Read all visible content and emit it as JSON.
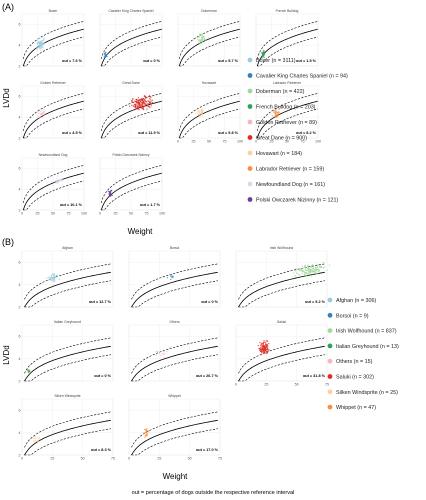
{
  "footer_note": "out = percentage of dogs outside the respective reference interval",
  "chart_data": [
    {
      "type": "scatter",
      "panel": "(A)",
      "xlabel": "Weight",
      "ylabel": "LVDd",
      "xlim": [
        0,
        100
      ],
      "ylim": [
        2,
        7
      ],
      "xticks": [
        0,
        25,
        50,
        75,
        100
      ],
      "yticks": [
        2,
        4,
        6
      ],
      "grid": true,
      "legend_position": "right",
      "facets": [
        {
          "name": "Boxer",
          "n": 3111,
          "out": "out = 7.6 %",
          "color": "#9ecae1",
          "x_range": [
            22,
            40
          ],
          "y_range": [
            3.4,
            4.9
          ],
          "density": 70
        },
        {
          "name": "Cavalier King Charles Spaniel",
          "n": 94,
          "out": "out = 0 %",
          "color": "#3182bd",
          "x_range": [
            6,
            12
          ],
          "y_range": [
            2.6,
            3.5
          ],
          "density": 20
        },
        {
          "name": "Doberman",
          "n": 422,
          "out": "out = 5.7 %",
          "color": "#a1d99b",
          "x_range": [
            28,
            48
          ],
          "y_range": [
            4.0,
            5.3
          ],
          "density": 45
        },
        {
          "name": "French Bulldog",
          "n": 203,
          "out": "out = 1.5 %",
          "color": "#31a354",
          "x_range": [
            9,
            15
          ],
          "y_range": [
            2.6,
            3.6
          ],
          "density": 30
        },
        {
          "name": "Golden Retriever",
          "n": 89,
          "out": "out = 4.5 %",
          "color": "#fbb4b9",
          "x_range": [
            25,
            40
          ],
          "y_range": [
            3.8,
            4.8
          ],
          "density": 20
        },
        {
          "name": "Great Dane",
          "n": 900,
          "out": "out = 11.9 %",
          "color": "#de2d26",
          "x_range": [
            45,
            90
          ],
          "y_range": [
            4.4,
            6.4
          ],
          "density": 160
        },
        {
          "name": "Hovawart",
          "n": 184,
          "out": "out = 9.8 %",
          "color": "#fdd0a2",
          "x_range": [
            28,
            45
          ],
          "y_range": [
            3.9,
            5.0
          ],
          "density": 35
        },
        {
          "name": "Labrador Retriever",
          "n": 159,
          "out": "out = 8.2 %",
          "color": "#fd8d3c",
          "x_range": [
            25,
            42
          ],
          "y_range": [
            3.8,
            4.9
          ],
          "density": 30
        },
        {
          "name": "Newfoundland Dog",
          "n": 161,
          "out": "out = 10.1 %",
          "color": "#dadaeb",
          "x_range": [
            45,
            70
          ],
          "y_range": [
            4.3,
            5.3
          ],
          "density": 30
        },
        {
          "name": "Polski Owczarek Nizinny",
          "n": 121,
          "out": "out = 1.7 %",
          "color": "#6a3d9a",
          "x_range": [
            12,
            22
          ],
          "y_range": [
            3.1,
            4.1
          ],
          "density": 25
        }
      ],
      "legend": [
        "Boxer (n = 3111)",
        "Cavalier King Charles Spaniel (n = 94)",
        "Doberman (n = 422)",
        "French Bulldog (n = 203)",
        "Golden Retriever (n = 89)",
        "Great Dane (n = 900)",
        "Hovawart (n = 184)",
        "Labrador Retriever (n = 159)",
        "Newfoundland Dog (n = 161)",
        "Polski Owczarek Nizinny (n = 121)"
      ]
    },
    {
      "type": "scatter",
      "panel": "(B)",
      "xlabel": "Weight",
      "ylabel": "LVDd",
      "xlim": [
        0,
        75
      ],
      "ylim": [
        2,
        7
      ],
      "xticks": [
        0,
        25,
        50,
        75
      ],
      "yticks": [
        2,
        4,
        6
      ],
      "grid": true,
      "legend_position": "right",
      "facets": [
        {
          "name": "Afghan",
          "n": 306,
          "out": "out = 12.7 %",
          "color": "#9ecae1",
          "x_range": [
            20,
            32
          ],
          "y_range": [
            4.1,
            5.1
          ],
          "density": 45
        },
        {
          "name": "Borsoi",
          "n": 9,
          "out": "out = 0 %",
          "color": "#3182bd",
          "x_range": [
            30,
            40
          ],
          "y_range": [
            4.4,
            5.0
          ],
          "density": 9
        },
        {
          "name": "Irish Wolfhound",
          "n": 837,
          "out": "out = 9.2 %",
          "color": "#a1d99b",
          "x_range": [
            45,
            78
          ],
          "y_range": [
            4.6,
            6.0
          ],
          "density": 140
        },
        {
          "name": "Italian Greyhound",
          "n": 13,
          "out": "out = 0 %",
          "color": "#31a354",
          "x_range": [
            4,
            7
          ],
          "y_range": [
            2.6,
            3.2
          ],
          "density": 10
        },
        {
          "name": "Others",
          "n": 15,
          "out": "out = 26.7 %",
          "color": "#fbb4b9",
          "x_range": [
            18,
            38
          ],
          "y_range": [
            3.8,
            5.2
          ],
          "density": 12
        },
        {
          "name": "Saluki",
          "n": 302,
          "out": "out = 31.8 %",
          "color": "#de2d26",
          "x_range": [
            17,
            30
          ],
          "y_range": [
            4.2,
            5.7
          ],
          "density": 120
        },
        {
          "name": "Silken Windsprite",
          "n": 25,
          "out": "out = 8.3 %",
          "color": "#fdd0a2",
          "x_range": [
            8,
            16
          ],
          "y_range": [
            3.0,
            3.8
          ],
          "density": 15
        },
        {
          "name": "Whippet",
          "n": 47,
          "out": "out = 17.0 %",
          "color": "#fd8d3c",
          "x_range": [
            11,
            18
          ],
          "y_range": [
            3.4,
            4.6
          ],
          "density": 25
        }
      ],
      "legend": [
        "Afghan (n = 306)",
        "Borsoi (n = 9)",
        "Irish Wolfhound (n = 837)",
        "Italian Greyhound (n = 13)",
        "Others (n = 15)",
        "Saluki (n = 302)",
        "Silken Windsprite (n = 25)",
        "Whippet (n = 47)"
      ]
    }
  ]
}
